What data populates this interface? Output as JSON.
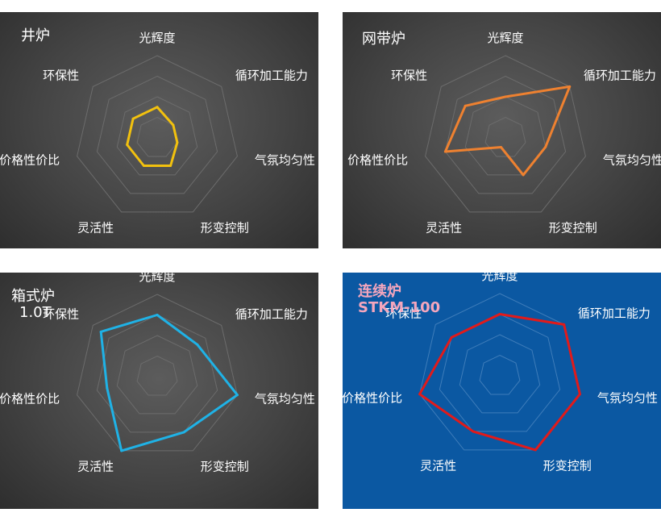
{
  "chart_data": [
    {
      "type": "radar",
      "title": "井炉",
      "subtitle": "",
      "categories": [
        "光辉度",
        "循环加工能力",
        "气氛均匀性",
        "形变控制",
        "灵活性",
        "价格性价比",
        "环保性"
      ],
      "series": [
        {
          "values": [
            3,
            2,
            2,
            3,
            3,
            3,
            3
          ],
          "color": "#f2c10e"
        }
      ],
      "rmax": 8,
      "grid_levels": 4,
      "grid": true,
      "background": "#4a4a4a",
      "label_color": "#ffffff",
      "grid_color": "#6c6c6c"
    },
    {
      "type": "radar",
      "title": "网带炉",
      "subtitle": "",
      "categories": [
        "光辉度",
        "循环加工能力",
        "气氛均匀性",
        "形变控制",
        "灵活性",
        "价格性价比",
        "环保性"
      ],
      "series": [
        {
          "values": [
            4,
            8,
            4,
            4,
            1,
            6,
            5
          ],
          "color": "#ee8130"
        }
      ],
      "rmax": 8,
      "grid_levels": 4,
      "grid": true,
      "background": "#4a4a4a",
      "label_color": "#ffffff",
      "grid_color": "#6c6c6c"
    },
    {
      "type": "radar",
      "title": "箱式炉",
      "subtitle": "1.0T",
      "categories": [
        "光辉度",
        "循环加工能力",
        "气氛均匀性",
        "形变控制",
        "灵活性",
        "价格性价比",
        "环保性"
      ],
      "series": [
        {
          "values": [
            6,
            5,
            8,
            6,
            8,
            5,
            7
          ],
          "color": "#1fb2e6"
        }
      ],
      "rmax": 8,
      "grid_levels": 4,
      "grid": true,
      "background": "#4a4a4a",
      "label_color": "#ffffff",
      "grid_color": "#6c6c6c"
    },
    {
      "type": "radar",
      "title": "连续炉",
      "subtitle": "STKM-100",
      "categories": [
        "光辉度",
        "循环加工能力",
        "气氛均匀性",
        "形变控制",
        "灵活性",
        "价格性价比",
        "环保性"
      ],
      "series": [
        {
          "values": [
            6,
            8,
            8,
            8,
            6,
            8,
            6
          ],
          "color": "#e21a1a"
        }
      ],
      "rmax": 8,
      "grid_levels": 4,
      "grid": true,
      "background": "#0b58a2",
      "label_color": "#ffffff",
      "grid_color": "#3f7dba"
    }
  ]
}
